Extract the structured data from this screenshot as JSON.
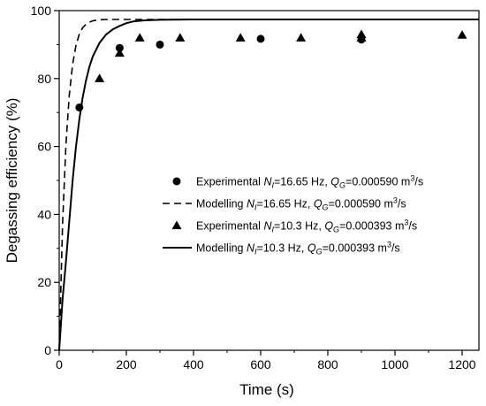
{
  "chart_data": {
    "type": "scatter",
    "xlabel": "Time (s)",
    "ylabel": "Degassing efficiency (%)",
    "xlim": [
      0,
      1250
    ],
    "ylim": [
      0,
      100
    ],
    "xticks": [
      0,
      200,
      400,
      600,
      800,
      1000,
      1200
    ],
    "yticks": [
      0,
      20,
      40,
      60,
      80,
      100
    ],
    "x_minor_step": 100,
    "y_minor_step": 10,
    "grid": false,
    "legend_position": "center-right",
    "series": [
      {
        "kind": "points",
        "marker": "circle",
        "legend": {
          "pre": "Experimental ",
          "Nsym": "N",
          "Nsub": "I",
          "nval": "=16.65 Hz, ",
          "Qsym": "Q",
          "Qsub": "G",
          "qval": "=0.000590 m",
          "sup": "3",
          "post": "/s"
        },
        "x": [
          60,
          180,
          300,
          600,
          900
        ],
        "y": [
          71.5,
          89,
          90,
          91.7,
          91.5
        ]
      },
      {
        "kind": "curve",
        "style": "dashed",
        "legend": {
          "pre": "Modelling ",
          "Nsym": "N",
          "Nsub": "I",
          "nval": "=16.65 Hz, ",
          "Qsym": "Q",
          "Qsub": "G",
          "qval": "=0.000590 m",
          "sup": "3",
          "post": "/s"
        },
        "x": [
          0,
          10,
          20,
          30,
          40,
          50,
          60,
          70,
          80,
          90,
          100,
          120,
          140,
          160,
          180,
          200,
          250,
          300,
          400,
          600,
          800,
          1000,
          1250
        ],
        "y": [
          0,
          37.1,
          60.5,
          75.1,
          84.2,
          89.8,
          93.1,
          95.0,
          96.0,
          96.6,
          97.0,
          97.3,
          97.4,
          97.4,
          97.4,
          97.4,
          97.4,
          97.4,
          97.4,
          97.4,
          97.4,
          97.4,
          97.4
        ]
      },
      {
        "kind": "points",
        "marker": "triangle",
        "legend": {
          "pre": "Experimental ",
          "Nsym": "N",
          "Nsub": "I",
          "nval": "=10.3 Hz, ",
          "Qsym": "Q",
          "Qsub": "G",
          "qval": "=0.000393 m",
          "sup": "3",
          "post": "/s"
        },
        "x": [
          120,
          180,
          240,
          360,
          540,
          720,
          900,
          900,
          1200
        ],
        "y": [
          80,
          87.5,
          92,
          92,
          92,
          92,
          92,
          93,
          92.8
        ]
      },
      {
        "kind": "curve",
        "style": "solid",
        "legend": {
          "pre": "Modelling ",
          "Nsym": "N",
          "Nsub": "I",
          "nval": "=10.3 Hz, ",
          "Qsym": "Q",
          "Qsub": "G",
          "qval": "=0.000393 m",
          "sup": "3",
          "post": "/s"
        },
        "x": [
          0,
          10,
          20,
          30,
          40,
          50,
          60,
          70,
          80,
          90,
          100,
          120,
          140,
          160,
          180,
          200,
          220,
          250,
          300,
          400,
          600,
          800,
          1000,
          1250
        ],
        "y": [
          0,
          15,
          26,
          38,
          50,
          60,
          68,
          74.5,
          79.5,
          83.5,
          86.5,
          90.5,
          93,
          94.5,
          95.5,
          96.3,
          96.8,
          97.1,
          97.3,
          97.4,
          97.4,
          97.4,
          97.4,
          97.4
        ]
      }
    ]
  }
}
